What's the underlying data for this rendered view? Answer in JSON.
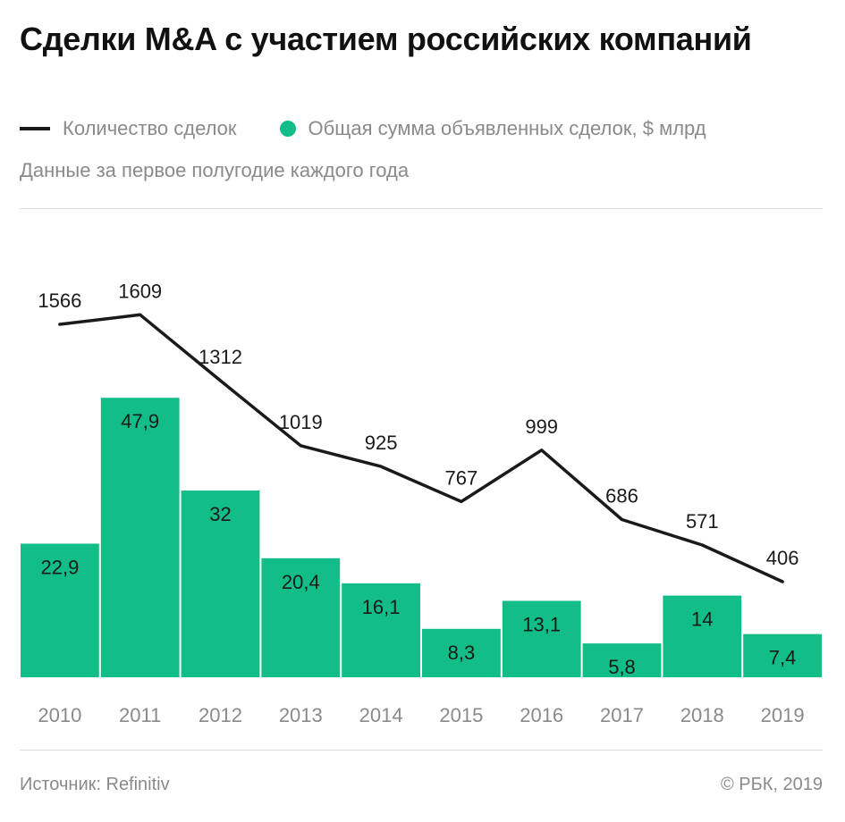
{
  "title": "Сделки M&A с участием российских компаний",
  "legend": {
    "line_label": "Количество сделок",
    "bar_label": "Общая сумма объявленных сделок, $ млрд"
  },
  "subtitle": "Данные за первое полугодие каждого года",
  "footer": {
    "source": "Источник: Refinitiv",
    "copyright": "© РБК, 2019"
  },
  "colors": {
    "bar": "#12bd87",
    "line": "#1a1a1a",
    "text": "#1a1a1a",
    "muted": "#8a8a8a"
  },
  "chart_data": {
    "type": "bar",
    "categories": [
      "2010",
      "2011",
      "2012",
      "2013",
      "2014",
      "2015",
      "2016",
      "2017",
      "2018",
      "2019"
    ],
    "series": [
      {
        "name": "Общая сумма объявленных сделок, $ млрд",
        "type": "bar",
        "values": [
          22.9,
          47.9,
          32,
          20.4,
          16.1,
          8.3,
          13.1,
          5.8,
          14,
          7.4
        ],
        "labels": [
          "22,9",
          "47,9",
          "32",
          "20,4",
          "16,1",
          "8,3",
          "13,1",
          "5,8",
          "14",
          "7,4"
        ]
      },
      {
        "name": "Количество сделок",
        "type": "line",
        "values": [
          1566,
          1609,
          1312,
          1019,
          925,
          767,
          999,
          686,
          571,
          406
        ],
        "labels": [
          "1566",
          "1609",
          "1312",
          "1019",
          "925",
          "767",
          "999",
          "686",
          "571",
          "406"
        ]
      }
    ],
    "title": "Сделки M&A с участием российских компаний",
    "xlabel": "",
    "ylabel": "",
    "grid": false,
    "legend": "top-left"
  }
}
